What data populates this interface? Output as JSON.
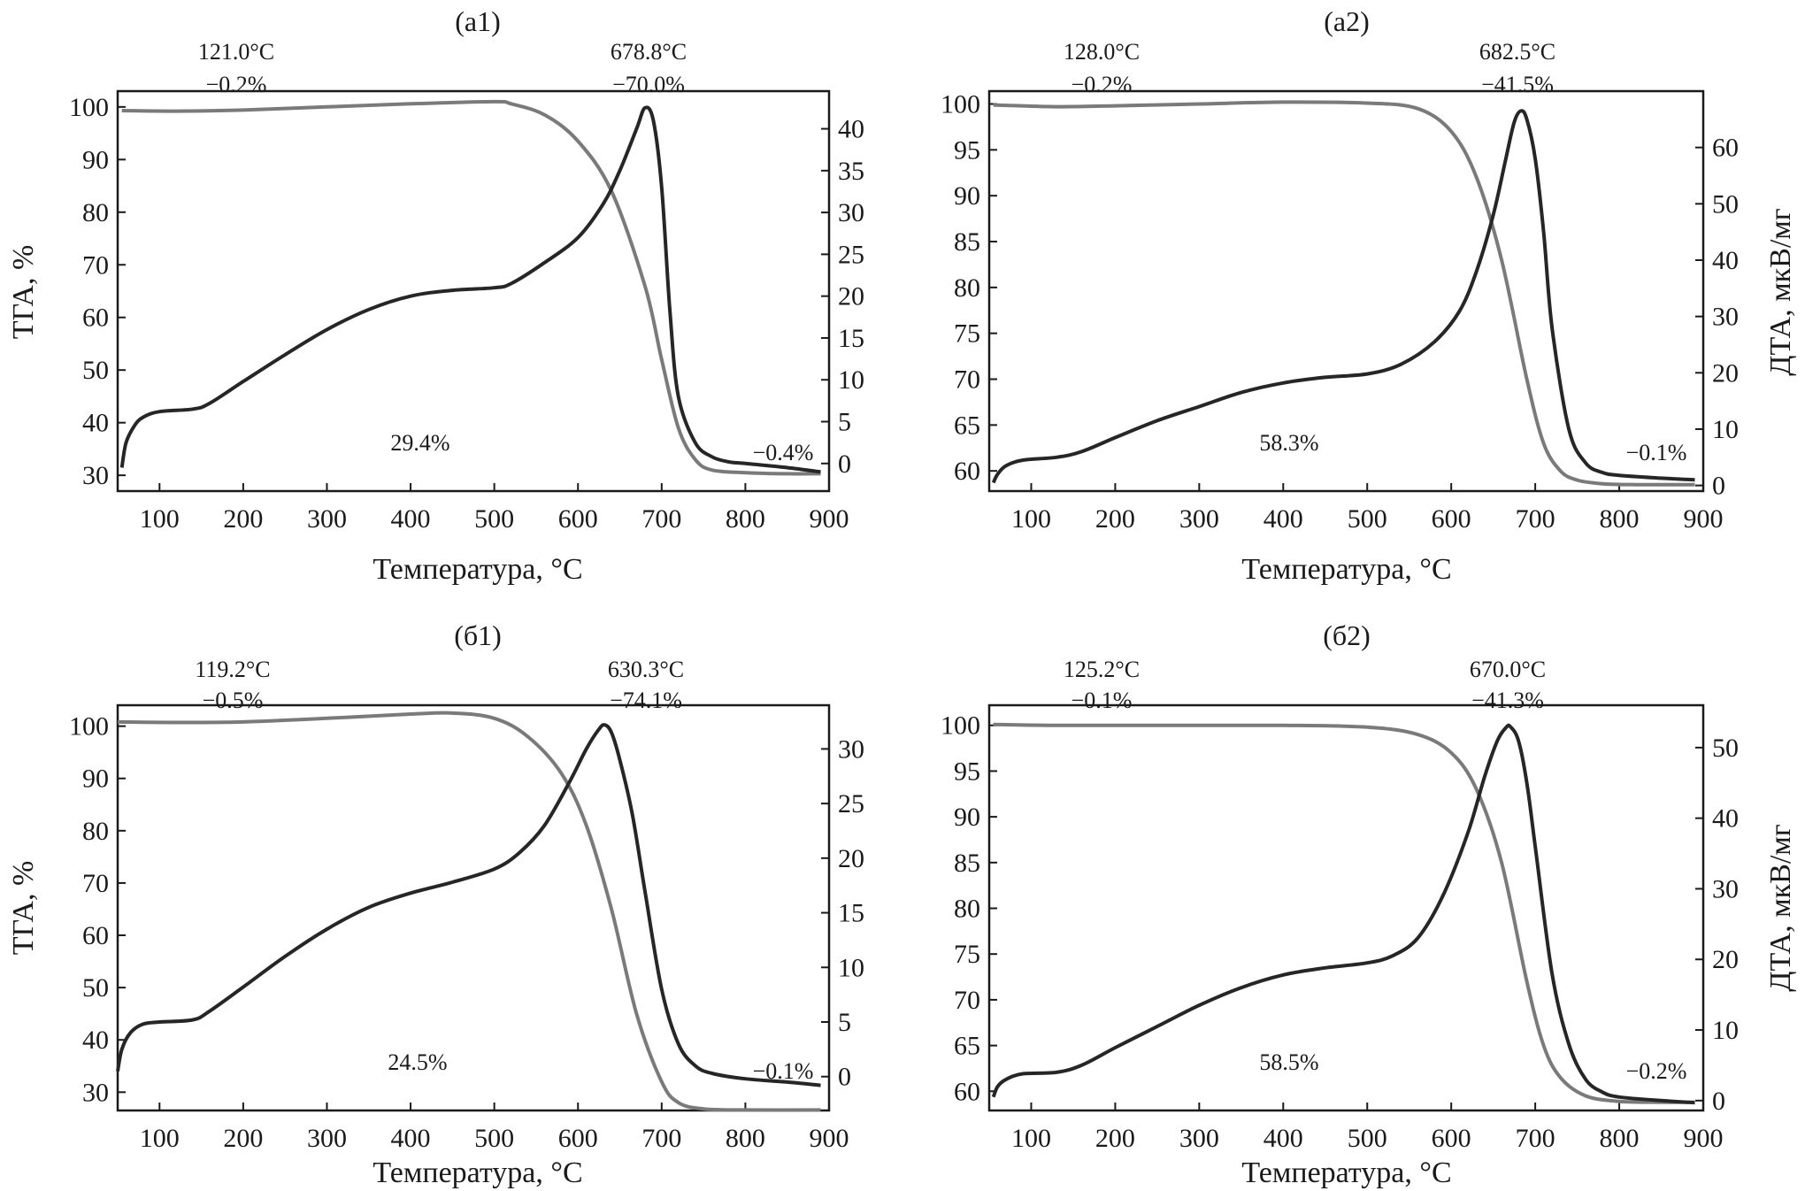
{
  "chart_data": [
    {
      "id": "a1",
      "type": "line",
      "title": "(а1)",
      "xlabel": "Температура, °C",
      "ylabel_left": "ТГА, %",
      "ylabel_right": "",
      "xlim": [
        50,
        900
      ],
      "ylim_left": [
        27,
        103
      ],
      "ylim_right": [
        -3.3,
        44.5
      ],
      "xticks": [
        100,
        200,
        300,
        400,
        500,
        600,
        700,
        800,
        900
      ],
      "yticks_left": [
        30,
        40,
        50,
        60,
        70,
        80,
        90,
        100
      ],
      "yticks_right": [
        0,
        5,
        10,
        15,
        20,
        25,
        30,
        35,
        40
      ],
      "annotations": [
        {
          "temp": "121.0°C",
          "loss": "−0.2%"
        },
        {
          "temp": "678.8°C",
          "loss": "−70.0%"
        },
        {
          "text": "29.4%"
        },
        {
          "text": "−0.4%"
        }
      ],
      "series": [
        {
          "name": "ТГА",
          "axis": "left",
          "color": "#7a7a7a",
          "x": [
            55,
            120,
            200,
            300,
            400,
            500,
            520,
            560,
            600,
            640,
            680,
            700,
            720,
            740,
            760,
            800,
            850,
            890
          ],
          "y": [
            99.3,
            99.2,
            99.4,
            100.0,
            100.6,
            101.0,
            100.6,
            98.5,
            93.5,
            84.0,
            66.0,
            52.0,
            39.0,
            33.0,
            31.0,
            30.5,
            30.3,
            30.3
          ]
        },
        {
          "name": "ДТА",
          "axis": "right",
          "color": "#262626",
          "x": [
            55,
            60,
            70,
            80,
            100,
            140,
            160,
            200,
            250,
            300,
            350,
            400,
            450,
            500,
            520,
            560,
            600,
            630,
            650,
            670,
            680,
            690,
            700,
            710,
            720,
            740,
            760,
            780,
            800,
            850,
            890
          ],
          "y": [
            -0.5,
            2.5,
            4.5,
            5.5,
            6.2,
            6.5,
            7.2,
            9.8,
            13.0,
            16.0,
            18.4,
            20.0,
            20.7,
            21.0,
            21.5,
            24.0,
            27.0,
            31.0,
            35.0,
            40.0,
            42.5,
            41.0,
            33.0,
            18.0,
            8.0,
            2.5,
            0.8,
            0.2,
            0.0,
            -0.5,
            -1.0
          ]
        }
      ]
    },
    {
      "id": "a2",
      "type": "line",
      "title": "(а2)",
      "xlabel": "Температура, °C",
      "ylabel_left": "",
      "ylabel_right": "ДТА, мкВ/мг",
      "xlim": [
        50,
        900
      ],
      "ylim_left": [
        57.8,
        101.4
      ],
      "ylim_right": [
        -1,
        70
      ],
      "xticks": [
        100,
        200,
        300,
        400,
        500,
        600,
        700,
        800,
        900
      ],
      "yticks_left": [
        60,
        65,
        70,
        75,
        80,
        85,
        90,
        95,
        100
      ],
      "yticks_right": [
        0,
        10,
        20,
        30,
        40,
        50,
        60
      ],
      "annotations": [
        {
          "temp": "128.0°C",
          "loss": "−0.2%"
        },
        {
          "temp": "682.5°C",
          "loss": "−41.5%"
        },
        {
          "text": "58.3%"
        },
        {
          "text": "−0.1%"
        }
      ],
      "series": [
        {
          "name": "ТГА",
          "axis": "left",
          "color": "#7a7a7a",
          "x": [
            55,
            128,
            200,
            300,
            400,
            500,
            560,
            600,
            630,
            660,
            690,
            710,
            730,
            750,
            780,
            820,
            890
          ],
          "y": [
            99.9,
            99.7,
            99.8,
            100.0,
            100.2,
            100.1,
            99.5,
            97.0,
            92.0,
            83.0,
            70.0,
            63.0,
            60.0,
            59.0,
            58.6,
            58.5,
            58.5
          ]
        },
        {
          "name": "ДТА",
          "axis": "right",
          "color": "#262626",
          "x": [
            55,
            60,
            70,
            90,
            130,
            160,
            200,
            250,
            300,
            350,
            400,
            450,
            500,
            540,
            580,
            610,
            630,
            650,
            665,
            675,
            683,
            690,
            700,
            710,
            720,
            740,
            760,
            780,
            800,
            850,
            890
          ],
          "y": [
            0.5,
            2.0,
            3.5,
            4.5,
            5.0,
            6.0,
            8.5,
            11.5,
            14.0,
            16.5,
            18.2,
            19.2,
            19.8,
            21.5,
            25.5,
            31.0,
            38.0,
            48.0,
            58.0,
            64.5,
            66.5,
            65.0,
            58.0,
            45.0,
            28.0,
            10.0,
            4.0,
            2.3,
            1.8,
            1.3,
            1.0
          ]
        }
      ]
    },
    {
      "id": "b1",
      "type": "line",
      "title": "(б1)",
      "xlabel": "Температура, °C",
      "ylabel_left": "ТГА, %",
      "ylabel_right": "",
      "xlim": [
        50,
        900
      ],
      "ylim_left": [
        26.5,
        104
      ],
      "ylim_right": [
        -3.1,
        34
      ],
      "xticks": [
        100,
        200,
        300,
        400,
        500,
        600,
        700,
        800,
        900
      ],
      "yticks_left": [
        30,
        40,
        50,
        60,
        70,
        80,
        90,
        100
      ],
      "yticks_right": [
        0,
        5,
        10,
        15,
        20,
        25,
        30
      ],
      "annotations": [
        {
          "temp": "119.2°C",
          "loss": "−0.5%"
        },
        {
          "temp": "630.3°C",
          "loss": "−74.1%"
        },
        {
          "text": "24.5%"
        },
        {
          "text": "−0.1%"
        }
      ],
      "series": [
        {
          "name": "ТГА",
          "axis": "left",
          "color": "#7a7a7a",
          "x": [
            50,
            119,
            200,
            300,
            400,
            450,
            500,
            540,
            580,
            610,
            640,
            670,
            700,
            720,
            750,
            800,
            890
          ],
          "y": [
            100.8,
            100.7,
            100.8,
            101.5,
            102.3,
            102.5,
            101.5,
            98.0,
            91.0,
            81.0,
            65.0,
            45.0,
            32.0,
            28.0,
            26.8,
            26.6,
            26.6
          ]
        },
        {
          "name": "ДТА",
          "axis": "right",
          "color": "#262626",
          "x": [
            50,
            55,
            65,
            80,
            100,
            140,
            160,
            200,
            250,
            300,
            350,
            400,
            450,
            500,
            530,
            560,
            590,
            610,
            625,
            632,
            640,
            650,
            665,
            680,
            700,
            720,
            740,
            760,
            800,
            850,
            890
          ],
          "y": [
            0.5,
            2.5,
            4.0,
            4.8,
            5.0,
            5.2,
            6.0,
            8.2,
            11.0,
            13.5,
            15.5,
            16.8,
            17.8,
            19.0,
            20.5,
            23.0,
            27.0,
            30.0,
            31.8,
            32.2,
            31.5,
            29.0,
            24.0,
            17.0,
            8.0,
            3.0,
            1.0,
            0.3,
            -0.2,
            -0.5,
            -0.8
          ]
        }
      ]
    },
    {
      "id": "b2",
      "type": "line",
      "title": "(б2)",
      "xlabel": "Температура, °C",
      "ylabel_left": "",
      "ylabel_right": "ДТА, мкВ/мг",
      "xlim": [
        50,
        900
      ],
      "ylim_left": [
        57.9,
        102.2
      ],
      "ylim_right": [
        -1.4,
        56
      ],
      "xticks": [
        100,
        200,
        300,
        400,
        500,
        600,
        700,
        800,
        900
      ],
      "yticks_left": [
        60,
        65,
        70,
        75,
        80,
        85,
        90,
        95,
        100
      ],
      "yticks_right": [
        0,
        10,
        20,
        30,
        40,
        50
      ],
      "annotations": [
        {
          "temp": "125.2°C",
          "loss": "−0.1%"
        },
        {
          "temp": "670.0°C",
          "loss": "−41.3%"
        },
        {
          "text": "58.5%"
        },
        {
          "text": "−0.2%"
        }
      ],
      "series": [
        {
          "name": "ТГА",
          "axis": "left",
          "color": "#7a7a7a",
          "x": [
            55,
            125,
            200,
            300,
            400,
            500,
            560,
            600,
            630,
            660,
            690,
            710,
            730,
            760,
            800,
            850,
            890
          ],
          "y": [
            100.1,
            100.0,
            100.0,
            100.0,
            100.0,
            99.8,
            99.0,
            97.0,
            93.0,
            85.0,
            72.0,
            65.0,
            61.5,
            59.5,
            58.9,
            58.8,
            58.8
          ]
        },
        {
          "name": "ДТА",
          "axis": "right",
          "color": "#262626",
          "x": [
            55,
            60,
            70,
            90,
            130,
            160,
            200,
            250,
            300,
            350,
            400,
            450,
            500,
            530,
            560,
            590,
            620,
            640,
            655,
            665,
            670,
            680,
            690,
            700,
            720,
            740,
            760,
            780,
            800,
            850,
            890
          ],
          "y": [
            0.5,
            2.0,
            3.0,
            3.8,
            4.0,
            5.0,
            7.5,
            10.5,
            13.5,
            16.0,
            17.8,
            18.8,
            19.5,
            20.5,
            23.0,
            29.0,
            38.0,
            46.0,
            51.0,
            52.8,
            53.0,
            51.0,
            45.0,
            36.0,
            18.0,
            8.0,
            3.0,
            1.2,
            0.5,
            0.0,
            -0.3
          ]
        }
      ]
    }
  ]
}
